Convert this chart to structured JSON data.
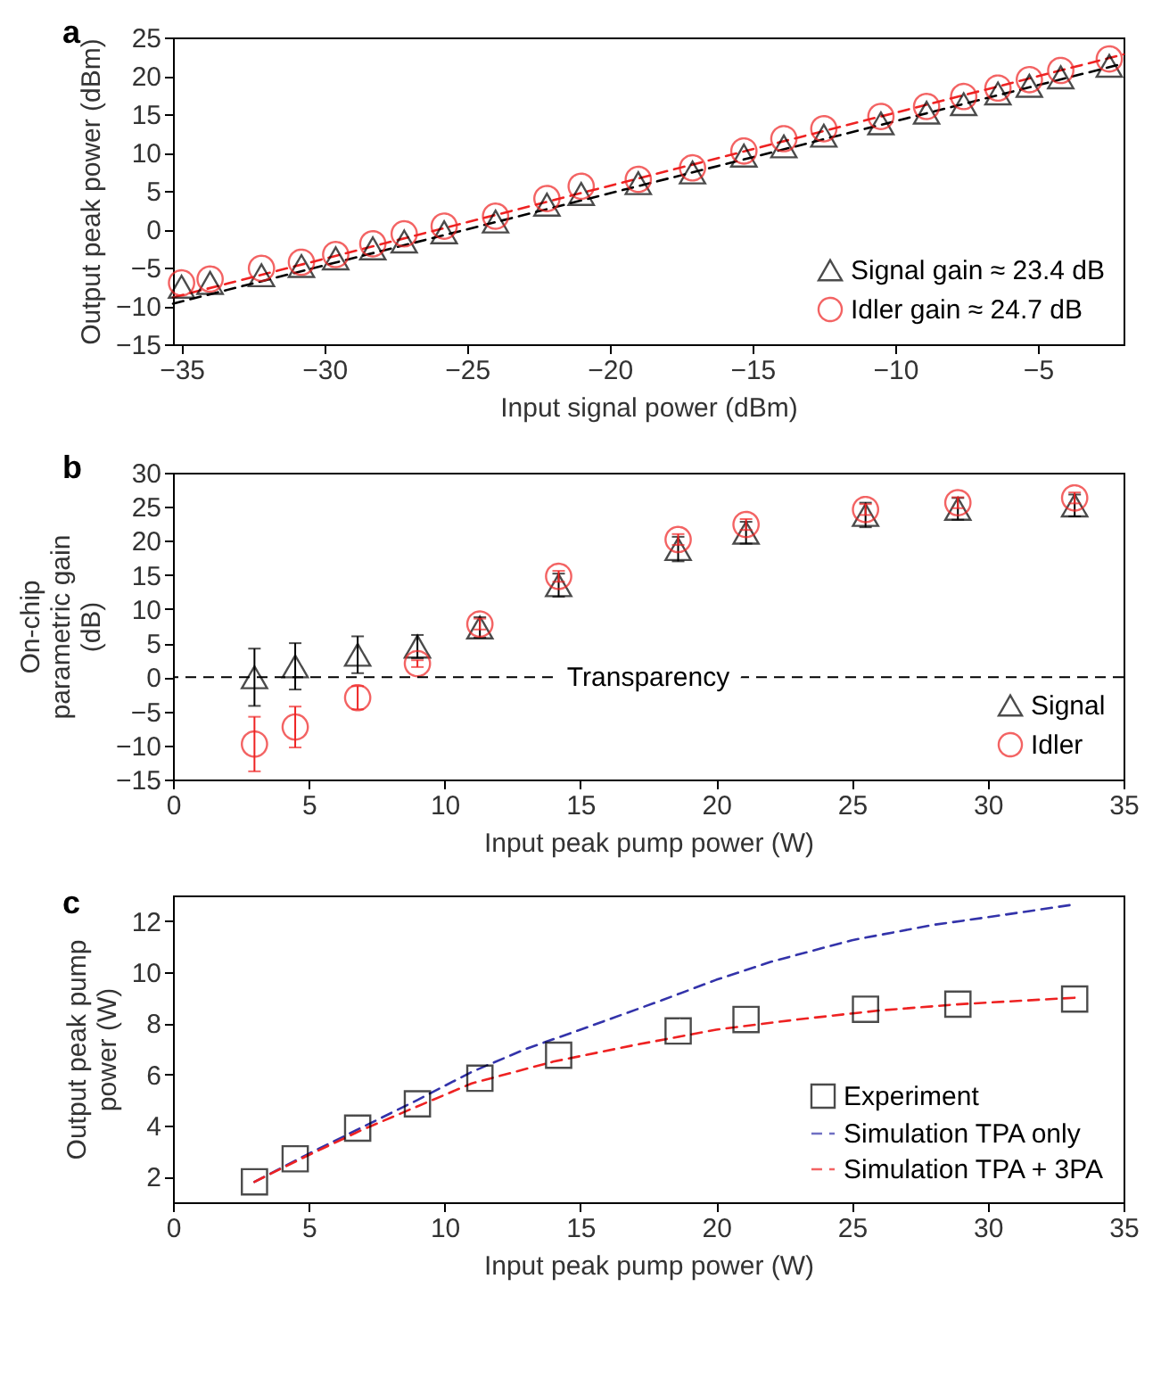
{
  "chart_data": [
    {
      "type": "scatter",
      "title": "a",
      "xlabel": "Input signal power (dBm)",
      "ylabel": "Output peak power (dBm)",
      "x": [
        -35,
        -34,
        -32.2,
        -30.8,
        -29.6,
        -28.3,
        -27.2,
        -25.8,
        -24,
        -22.2,
        -21,
        -19,
        -17.1,
        -15.3,
        -13.9,
        -12.5,
        -10.5,
        -8.9,
        -7.6,
        -6.4,
        -5.3,
        -4.2,
        -2.5
      ],
      "series": [
        {
          "name": "Signal gain ≈ 23.4 dB",
          "color": "#000000",
          "marker": "triangle",
          "values": [
            -7.5,
            -7,
            -6,
            -4.8,
            -3.8,
            -2.5,
            -1.6,
            -0.4,
            1,
            3.2,
            4.6,
            6,
            7.4,
            9.6,
            10.8,
            12.2,
            13.8,
            15.2,
            16.3,
            17.7,
            18.7,
            19.8,
            21.3
          ]
        },
        {
          "name": "Idler gain ≈ 24.7 dB",
          "color": "#ee2222",
          "marker": "circle",
          "values": [
            -7,
            -6.5,
            -5.1,
            -4.3,
            -3.3,
            -1.9,
            -0.6,
            0.4,
            1.7,
            4,
            5.6,
            6.5,
            8,
            10.2,
            11.8,
            13.1,
            14.7,
            16,
            17.3,
            18.4,
            19.5,
            20.7,
            22.2
          ]
        },
        {
          "type": "line",
          "color": "#000000",
          "line_style": "dashed",
          "x": [
            -35.3,
            -2
          ],
          "values": [
            -9.7,
            21.6
          ]
        },
        {
          "type": "line",
          "color": "#ee2222",
          "line_style": "dashed",
          "x": [
            -35.3,
            -2
          ],
          "values": [
            -8.9,
            22.8
          ]
        }
      ],
      "xlim": [
        -35.3,
        -2
      ],
      "xticks": [
        -35,
        -30,
        -25,
        -20,
        -15,
        -10,
        -5
      ],
      "ylim": [
        -15,
        25
      ],
      "yticks": [
        -15,
        -10,
        -5,
        0,
        5,
        10,
        15,
        20,
        25
      ],
      "grid": false,
      "legend": "bottom right"
    },
    {
      "type": "scatter",
      "title": "b",
      "xlabel": "Input peak pump power (W)",
      "ylabel": "On-chip parametric gain (dB)",
      "x": [
        3.0,
        4.5,
        6.8,
        9.0,
        11.3,
        14.2,
        18.6,
        21.1,
        25.5,
        28.9,
        33.2
      ],
      "series": [
        {
          "name": "Signal",
          "color": "#000000",
          "marker": "triangle",
          "values": [
            0,
            1.6,
            3.3,
            4.5,
            7.3,
            13.5,
            18.8,
            21.2,
            23.8,
            24.7,
            25.2
          ],
          "errors": [
            4.2,
            3.4,
            2.7,
            1.7,
            1.5,
            1.7,
            1.8,
            1.6,
            1.8,
            1.6,
            1.6
          ]
        },
        {
          "name": "Idler",
          "color": "#ee2222",
          "marker": "circle",
          "values": [
            -9.8,
            -7.3,
            -3,
            2,
            7.8,
            14.8,
            20.2,
            22.4,
            24.6,
            25.6,
            26.3
          ],
          "errors": [
            4,
            3,
            1.7,
            0.5,
            0.8,
            0.8,
            0.8,
            0.8,
            0.8,
            0.8,
            0.8
          ]
        }
      ],
      "ref_lines": [
        {
          "axis": "y",
          "value": 0,
          "label": "Transparency",
          "color": "#000000",
          "line_style": "dashed"
        }
      ],
      "xlim": [
        0,
        35
      ],
      "xticks": [
        0,
        5,
        10,
        15,
        20,
        25,
        30,
        35
      ],
      "ylim": [
        -15,
        30
      ],
      "yticks": [
        -15,
        -10,
        -5,
        0,
        5,
        10,
        15,
        20,
        25,
        30
      ],
      "grid": false,
      "legend": "bottom right"
    },
    {
      "type": "scatter",
      "title": "c",
      "xlabel": "Input peak pump power (W)",
      "ylabel": "Output peak pump power (W)",
      "x": [
        3.0,
        4.5,
        6.8,
        9.0,
        11.3,
        14.2,
        18.6,
        21.1,
        25.5,
        28.9,
        33.2
      ],
      "series": [
        {
          "name": "Experiment",
          "color": "#000000",
          "marker": "square",
          "values": [
            1.8,
            2.7,
            3.9,
            4.85,
            5.85,
            6.75,
            7.7,
            8.15,
            8.55,
            8.75,
            8.95
          ]
        },
        {
          "name": "Simulation TPA only",
          "type": "line",
          "color": "#3333aa",
          "line_style": "dashed",
          "x": [
            3,
            5,
            7,
            9,
            11,
            13,
            15,
            18,
            20,
            22,
            25,
            28,
            30,
            33.2
          ],
          "values": [
            1.8,
            2.9,
            3.95,
            5,
            6.1,
            7,
            7.75,
            8.9,
            9.7,
            10.4,
            11.25,
            11.85,
            12.15,
            12.65
          ]
        },
        {
          "name": "Simulation TPA + 3PA",
          "type": "line",
          "color": "#ee2222",
          "line_style": "dashed",
          "x": [
            3,
            5,
            7,
            9,
            11,
            14,
            17,
            20,
            23,
            26,
            29,
            33.2
          ],
          "values": [
            1.8,
            2.85,
            3.85,
            4.75,
            5.65,
            6.5,
            7.15,
            7.75,
            8.15,
            8.5,
            8.75,
            9.0
          ]
        }
      ],
      "xlim": [
        0,
        35
      ],
      "xticks": [
        0,
        5,
        10,
        15,
        20,
        25,
        30,
        35
      ],
      "ylim": [
        1,
        13
      ],
      "yticks": [
        2,
        4,
        6,
        8,
        10,
        12
      ],
      "grid": false,
      "legend": "bottom right"
    }
  ]
}
